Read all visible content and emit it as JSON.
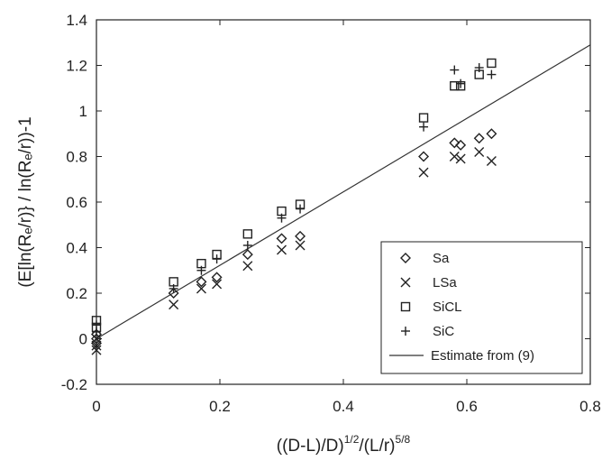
{
  "chart_data": {
    "type": "scatter",
    "xlabel_base": "((D-L)/D)",
    "xlabel_exp1": "1/2",
    "xlabel_mid": "/(L/r)",
    "xlabel_exp2": "5/8",
    "ylabel": "(E[ln(Rₑ/r)} / ln(Rₑ/r))-1",
    "xlim": [
      0,
      0.8
    ],
    "ylim": [
      -0.2,
      1.4
    ],
    "xticks": [
      "0",
      "0.2",
      "0.4",
      "0.6",
      "0.8"
    ],
    "yticks": [
      "-0.2",
      "0",
      "0.2",
      "0.4",
      "0.6",
      "0.8",
      "1",
      "1.2",
      "1.4"
    ],
    "xtick_values": [
      0,
      0.2,
      0.4,
      0.6,
      0.8
    ],
    "ytick_values": [
      -0.2,
      0,
      0.2,
      0.4,
      0.6,
      0.8,
      1,
      1.2,
      1.4
    ],
    "grid": false,
    "legend_position": "bottom-right",
    "series": [
      {
        "name": "Sa",
        "marker": "diamond",
        "points": [
          [
            0,
            0.0
          ],
          [
            0,
            -0.02
          ],
          [
            0,
            0.02
          ],
          [
            0.125,
            0.2
          ],
          [
            0.17,
            0.25
          ],
          [
            0.195,
            0.27
          ],
          [
            0.245,
            0.37
          ],
          [
            0.3,
            0.44
          ],
          [
            0.33,
            0.45
          ],
          [
            0.53,
            0.8
          ],
          [
            0.58,
            0.86
          ],
          [
            0.59,
            0.85
          ],
          [
            0.62,
            0.88
          ],
          [
            0.64,
            0.9
          ]
        ]
      },
      {
        "name": "LSa",
        "marker": "x",
        "points": [
          [
            0,
            -0.05
          ],
          [
            0,
            -0.03
          ],
          [
            0,
            0.0
          ],
          [
            0.125,
            0.15
          ],
          [
            0.17,
            0.22
          ],
          [
            0.195,
            0.24
          ],
          [
            0.245,
            0.32
          ],
          [
            0.3,
            0.39
          ],
          [
            0.33,
            0.41
          ],
          [
            0.53,
            0.73
          ],
          [
            0.58,
            0.8
          ],
          [
            0.59,
            0.79
          ],
          [
            0.62,
            0.82
          ],
          [
            0.64,
            0.78
          ]
        ]
      },
      {
        "name": "SiCL",
        "marker": "square",
        "points": [
          [
            0,
            0.08
          ],
          [
            0,
            0.05
          ],
          [
            0.125,
            0.25
          ],
          [
            0.17,
            0.33
          ],
          [
            0.195,
            0.37
          ],
          [
            0.245,
            0.46
          ],
          [
            0.3,
            0.56
          ],
          [
            0.33,
            0.59
          ],
          [
            0.53,
            0.97
          ],
          [
            0.58,
            1.11
          ],
          [
            0.59,
            1.11
          ],
          [
            0.62,
            1.16
          ],
          [
            0.64,
            1.21
          ]
        ]
      },
      {
        "name": "SiC",
        "marker": "plus",
        "points": [
          [
            0,
            0.06
          ],
          [
            0,
            0.03
          ],
          [
            0.125,
            0.22
          ],
          [
            0.17,
            0.3
          ],
          [
            0.195,
            0.35
          ],
          [
            0.245,
            0.41
          ],
          [
            0.3,
            0.53
          ],
          [
            0.33,
            0.57
          ],
          [
            0.53,
            0.93
          ],
          [
            0.58,
            1.18
          ],
          [
            0.59,
            1.12
          ],
          [
            0.62,
            1.19
          ],
          [
            0.64,
            1.16
          ]
        ]
      }
    ],
    "line": {
      "name": "Estimate from (9)",
      "points": [
        [
          0,
          0.0
        ],
        [
          0.8,
          1.29
        ]
      ]
    }
  }
}
